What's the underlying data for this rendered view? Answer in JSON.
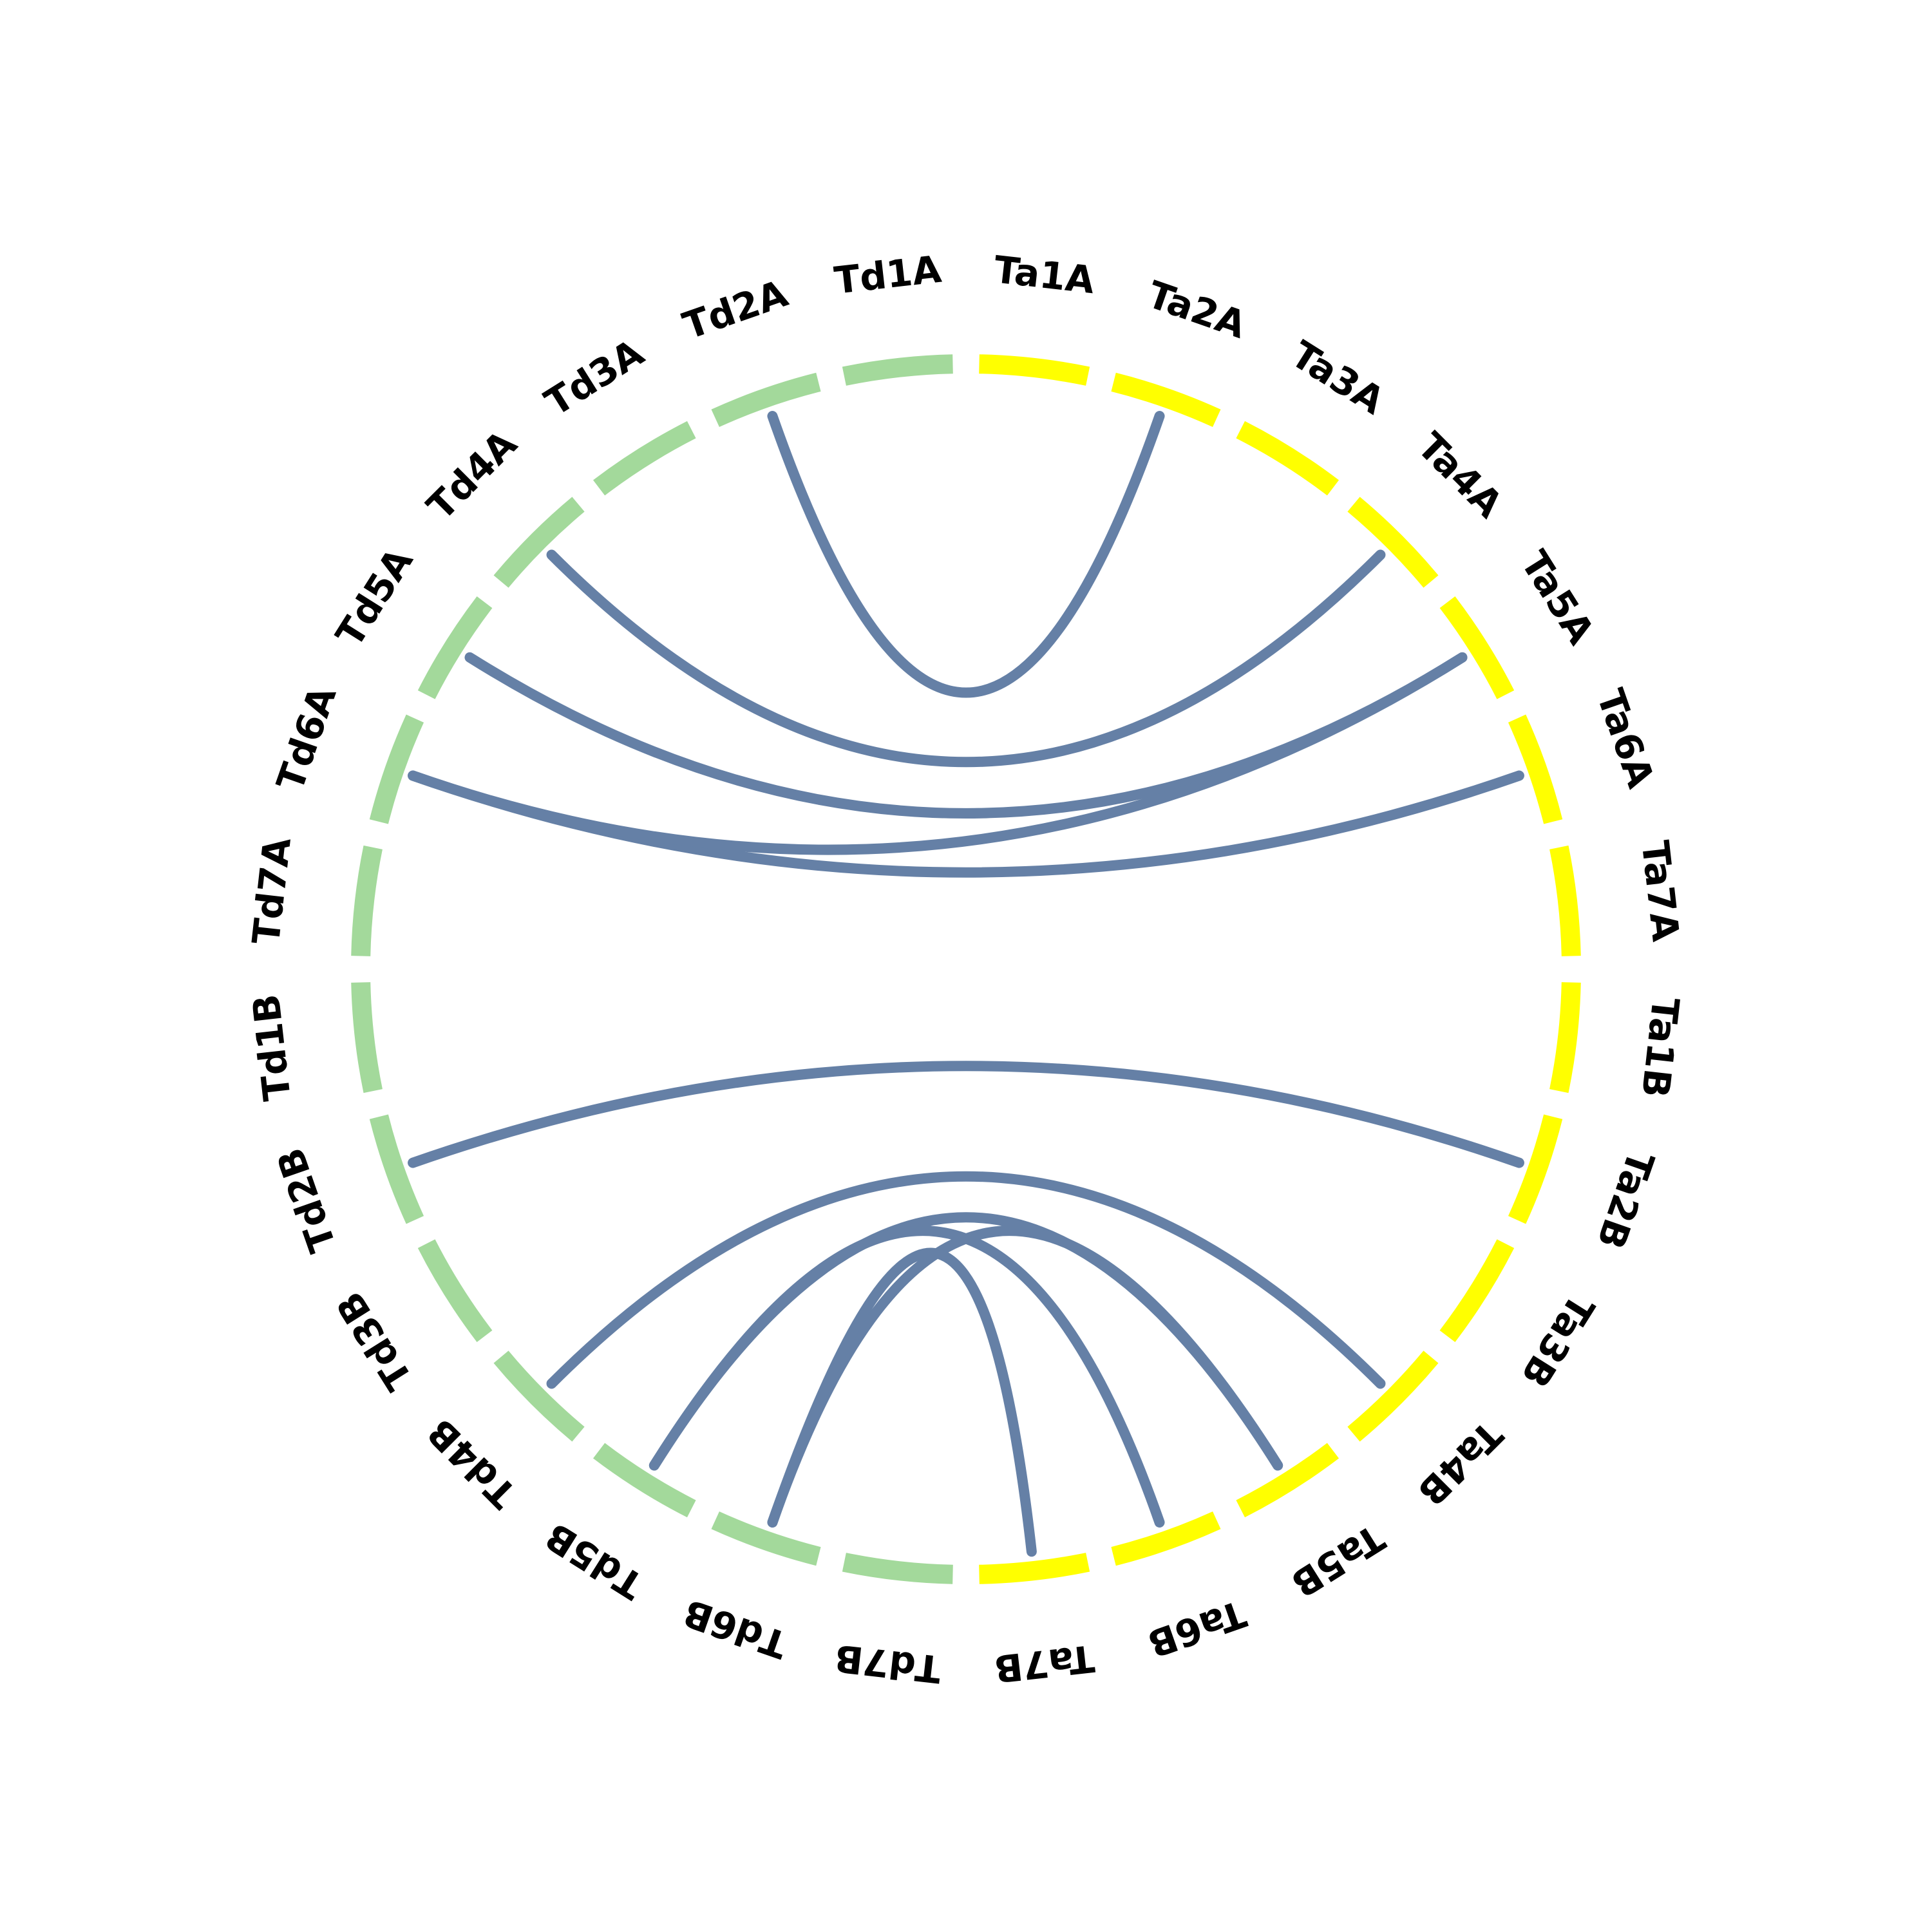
{
  "colors": {
    "group_a": "#ffff00",
    "group_b": "#a3d99b",
    "link": "#6580a6"
  },
  "segments": [
    {
      "label": "Ta1A",
      "group": "group_a"
    },
    {
      "label": "Ta2A",
      "group": "group_a"
    },
    {
      "label": "Ta3A",
      "group": "group_a"
    },
    {
      "label": "Ta4A",
      "group": "group_a"
    },
    {
      "label": "Ta5A",
      "group": "group_a"
    },
    {
      "label": "Ta6A",
      "group": "group_a"
    },
    {
      "label": "Ta7A",
      "group": "group_a"
    },
    {
      "label": "Ta1B",
      "group": "group_a"
    },
    {
      "label": "Ta2B",
      "group": "group_a"
    },
    {
      "label": "Ta3B",
      "group": "group_a"
    },
    {
      "label": "Ta4B",
      "group": "group_a"
    },
    {
      "label": "Ta5B",
      "group": "group_a"
    },
    {
      "label": "Ta6B",
      "group": "group_a"
    },
    {
      "label": "Ta7B",
      "group": "group_a"
    },
    {
      "label": "Td7B",
      "group": "group_b"
    },
    {
      "label": "Td6B",
      "group": "group_b"
    },
    {
      "label": "Td5B",
      "group": "group_b"
    },
    {
      "label": "Td4B",
      "group": "group_b"
    },
    {
      "label": "Td3B",
      "group": "group_b"
    },
    {
      "label": "Td2B",
      "group": "group_b"
    },
    {
      "label": "Td1B",
      "group": "group_b"
    },
    {
      "label": "Td7A",
      "group": "group_b"
    },
    {
      "label": "Td6A",
      "group": "group_b"
    },
    {
      "label": "Td5A",
      "group": "group_b"
    },
    {
      "label": "Td4A",
      "group": "group_b"
    },
    {
      "label": "Td3A",
      "group": "group_b"
    },
    {
      "label": "Td2A",
      "group": "group_b"
    },
    {
      "label": "Td1A",
      "group": "group_b"
    }
  ],
  "links": [
    {
      "from": "Ta2A",
      "to": "Td2A"
    },
    {
      "from": "Ta4A",
      "to": "Td4A"
    },
    {
      "from": "Ta5A",
      "to": "Td5A"
    },
    {
      "from": "Ta6A",
      "to": "Td6A"
    },
    {
      "from": "Ta5A",
      "to": "Td6A"
    },
    {
      "from": "Ta2B",
      "to": "Td2B"
    },
    {
      "from": "Ta4B",
      "to": "Td4B"
    },
    {
      "from": "Ta5B",
      "to": "Td5B"
    },
    {
      "from": "Ta5B",
      "to": "Td6B"
    },
    {
      "from": "Ta6B",
      "to": "Td5B"
    },
    {
      "from": "Ta7B",
      "to": "Td6B"
    }
  ]
}
